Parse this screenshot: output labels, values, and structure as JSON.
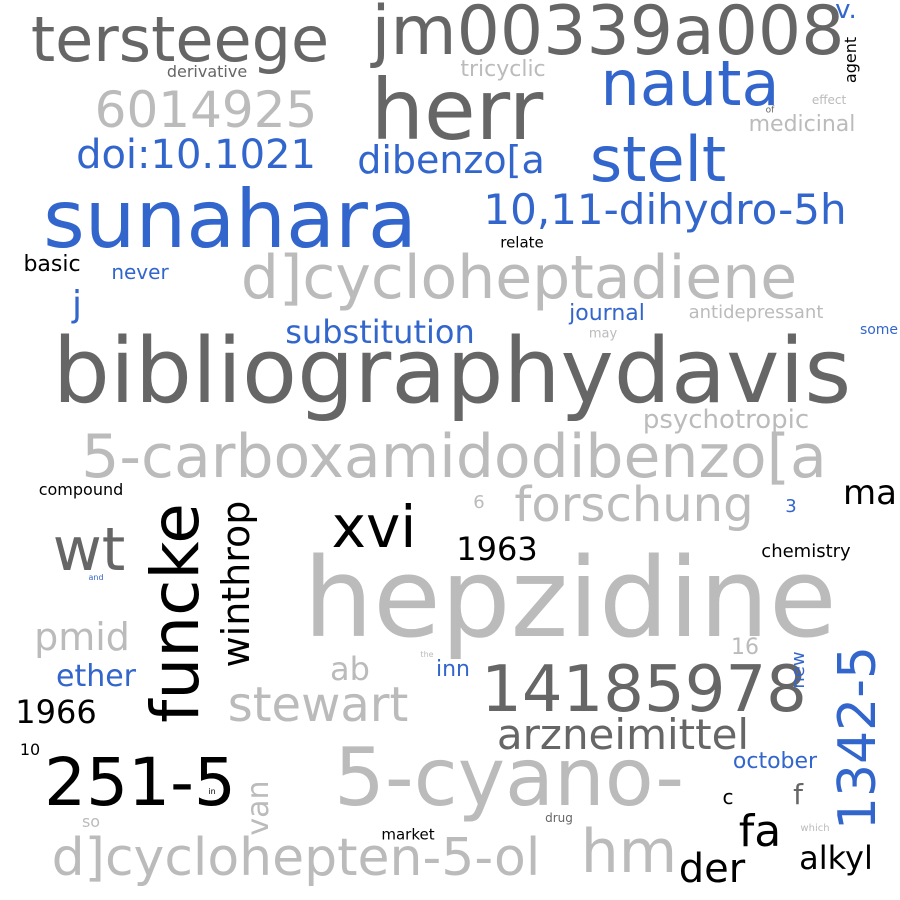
{
  "colors": {
    "dark_gray": "#666666",
    "light_gray": "#bbbbbb",
    "blue": "#3366cc",
    "black": "#000000"
  },
  "words": [
    {
      "text": "tersteege",
      "color": "#666666"
    },
    {
      "text": "jm00339a008",
      "color": "#666666"
    },
    {
      "text": "v.",
      "color": "#3366cc"
    },
    {
      "text": "agent",
      "color": "#000000"
    },
    {
      "text": "derivative",
      "color": "#666666"
    },
    {
      "text": "tricyclic",
      "color": "#bbbbbb"
    },
    {
      "text": "herr",
      "color": "#666666"
    },
    {
      "text": "nauta",
      "color": "#3366cc"
    },
    {
      "text": "6014925",
      "color": "#bbbbbb"
    },
    {
      "text": "of",
      "color": "#666666"
    },
    {
      "text": "effect",
      "color": "#bbbbbb"
    },
    {
      "text": "medicinal",
      "color": "#bbbbbb"
    },
    {
      "text": "doi:10.1021",
      "color": "#3366cc"
    },
    {
      "text": "dibenzo[a",
      "color": "#3366cc"
    },
    {
      "text": "stelt",
      "color": "#3366cc"
    },
    {
      "text": "sunahara",
      "color": "#3366cc"
    },
    {
      "text": "10,11-dihydro-5h",
      "color": "#3366cc"
    },
    {
      "text": "relate",
      "color": "#000000"
    },
    {
      "text": "basic",
      "color": "#000000"
    },
    {
      "text": "never",
      "color": "#3366cc"
    },
    {
      "text": "d]cycloheptadiene",
      "color": "#bbbbbb"
    },
    {
      "text": "j",
      "color": "#3366cc"
    },
    {
      "text": "journal",
      "color": "#3366cc"
    },
    {
      "text": "antidepressant",
      "color": "#bbbbbb"
    },
    {
      "text": "substitution",
      "color": "#3366cc"
    },
    {
      "text": "may",
      "color": "#bbbbbb"
    },
    {
      "text": "some",
      "color": "#3366cc"
    },
    {
      "text": "bibliographydavis",
      "color": "#666666"
    },
    {
      "text": "psychotropic",
      "color": "#bbbbbb"
    },
    {
      "text": "5-carboxamidodibenzo[a",
      "color": "#bbbbbb"
    },
    {
      "text": "compound",
      "color": "#000000"
    },
    {
      "text": "funcke",
      "color": "#000000"
    },
    {
      "text": "winthrop",
      "color": "#000000"
    },
    {
      "text": "xvi",
      "color": "#000000"
    },
    {
      "text": "6",
      "color": "#bbbbbb"
    },
    {
      "text": "forschung",
      "color": "#bbbbbb"
    },
    {
      "text": "3",
      "color": "#3366cc"
    },
    {
      "text": "ma",
      "color": "#000000"
    },
    {
      "text": "wt",
      "color": "#666666"
    },
    {
      "text": "1963",
      "color": "#000000"
    },
    {
      "text": "chemistry",
      "color": "#000000"
    },
    {
      "text": "and",
      "color": "#3366cc"
    },
    {
      "text": "hepzidine",
      "color": "#bbbbbb"
    },
    {
      "text": "pmid",
      "color": "#bbbbbb"
    },
    {
      "text": "ab",
      "color": "#bbbbbb"
    },
    {
      "text": "the",
      "color": "#bbbbbb"
    },
    {
      "text": "inn",
      "color": "#3366cc"
    },
    {
      "text": "16",
      "color": "#bbbbbb"
    },
    {
      "text": "ether",
      "color": "#3366cc"
    },
    {
      "text": "14185978",
      "color": "#666666"
    },
    {
      "text": "new",
      "color": "#3366cc"
    },
    {
      "text": "1342-5",
      "color": "#3366cc"
    },
    {
      "text": "1966",
      "color": "#000000"
    },
    {
      "text": "stewart",
      "color": "#bbbbbb"
    },
    {
      "text": "arzneimittel",
      "color": "#666666"
    },
    {
      "text": "10",
      "color": "#000000"
    },
    {
      "text": "251-5",
      "color": "#000000"
    },
    {
      "text": "in",
      "color": "#000000"
    },
    {
      "text": "van",
      "color": "#bbbbbb"
    },
    {
      "text": "5-cyano-",
      "color": "#bbbbbb"
    },
    {
      "text": "october",
      "color": "#3366cc"
    },
    {
      "text": "c",
      "color": "#000000"
    },
    {
      "text": "f",
      "color": "#666666"
    },
    {
      "text": "fa",
      "color": "#000000"
    },
    {
      "text": "so",
      "color": "#bbbbbb"
    },
    {
      "text": "drug",
      "color": "#666666"
    },
    {
      "text": "which",
      "color": "#bbbbbb"
    },
    {
      "text": "market",
      "color": "#000000"
    },
    {
      "text": "d]cyclohepten-5-ol",
      "color": "#bbbbbb"
    },
    {
      "text": "hm",
      "color": "#bbbbbb"
    },
    {
      "text": "alkyl",
      "color": "#000000"
    },
    {
      "text": "der",
      "color": "#000000"
    }
  ]
}
